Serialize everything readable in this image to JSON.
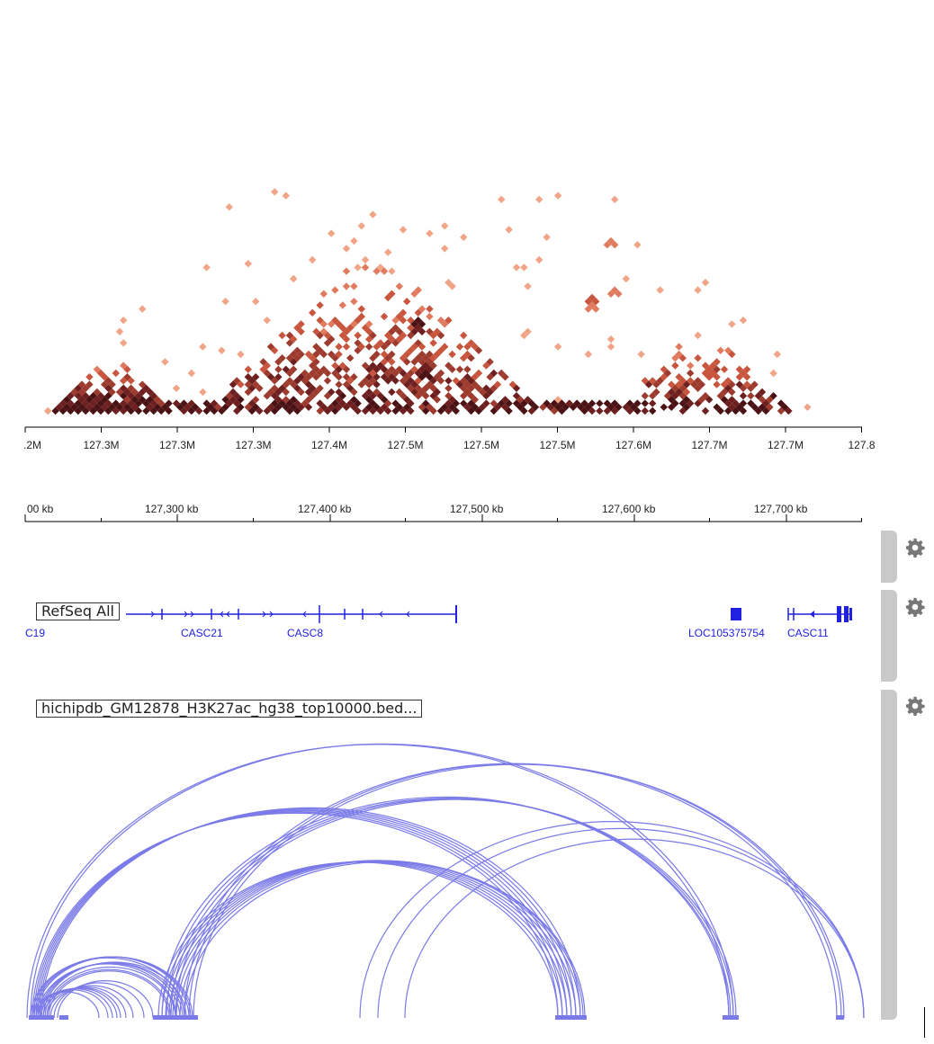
{
  "colors": {
    "heatmap_low": "#f4a582",
    "heatmap_mid": "#c8553d",
    "heatmap_high": "#5a1a1a",
    "gene": "#2020e0",
    "arc": "#7a7ae8",
    "handle": "#c9c9c9",
    "gear": "#777777"
  },
  "heatmap_axis": {
    "ticks": [
      ".2M",
      "127.3M",
      "127.3M",
      "127.3M",
      "127.4M",
      "127.5M",
      "127.5M",
      "127.5M",
      "127.6M",
      "127.7M",
      "127.7M",
      "127.8"
    ]
  },
  "ruler": {
    "ticks": [
      "00 kb",
      "127,300 kb",
      "127,400 kb",
      "127,500 kb",
      "127,600 kb",
      "127,700 kb"
    ]
  },
  "tracks": {
    "refseq": {
      "label": "RefSeq All",
      "genes": [
        "C19",
        "CASC21",
        "CASC8",
        "LOC105375754",
        "CASC11"
      ]
    },
    "arcs": {
      "label": "hichipdb_GM12878_H3K27ac_hg38_top10000.bed..."
    }
  },
  "icons": {
    "settings": "gear-icon"
  }
}
